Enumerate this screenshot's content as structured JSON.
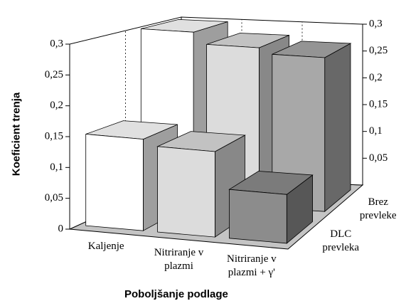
{
  "chart_data": {
    "type": "bar3d",
    "xlabel": "Poboljšanje podlage",
    "ylabel": "Koeficient trenja",
    "categories": [
      "Kaljenje",
      "Nitriranje v plazmi",
      "Nitriranje v plazmi + γ'"
    ],
    "series": [
      {
        "name": "Brez prevleke",
        "colors": [
          "#ffffff",
          "#dcdcdc",
          "#a8a8a8"
        ],
        "values": [
          0.3,
          0.28,
          0.27
        ]
      },
      {
        "name": "DLC prevleka",
        "colors": [
          "#ffffff",
          "#dcdcdc",
          "#8c8c8c"
        ],
        "values": [
          0.15,
          0.14,
          0.08
        ]
      }
    ],
    "ylim": [
      0,
      0.3
    ],
    "yticks": [
      0,
      {
        "value": 0.05,
        "label": "0,05"
      },
      {
        "value": 0.1,
        "label": "0,1"
      },
      {
        "value": 0.15,
        "label": "0,15"
      },
      {
        "value": 0.2,
        "label": "0,2"
      },
      {
        "value": 0.25,
        "label": "0,25"
      },
      {
        "value": 0.3,
        "label": "0,3"
      }
    ]
  }
}
